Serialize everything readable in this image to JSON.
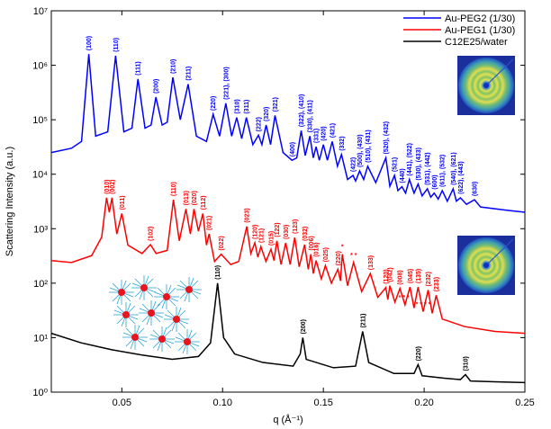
{
  "chart_data": {
    "type": "line",
    "y_label": "Scattering Intensity (a.u.)",
    "x_label": "q (Å⁻¹)",
    "xlim": [
      0.015,
      0.25
    ],
    "xticks": [
      0.05,
      {
        "value": 0.1,
        "label": "0.10"
      },
      0.15,
      {
        "value": 0.2,
        "label": "0.20"
      },
      0.25
    ],
    "ylim": [
      1,
      10000000
    ],
    "log_y": true,
    "yticks": [
      {
        "value": 1,
        "label": "10⁰"
      },
      {
        "value": 10,
        "label": "10¹"
      },
      {
        "value": 100,
        "label": "10²"
      },
      {
        "value": 1000,
        "label": "10³"
      },
      {
        "value": 10000,
        "label": "10⁴"
      },
      {
        "value": 100000,
        "label": "10⁵"
      },
      {
        "value": 1000000,
        "label": "10⁶"
      },
      {
        "value": 10000000,
        "label": "10⁷"
      }
    ],
    "legend": "upper right",
    "series": [
      {
        "name": "Au-PEG2 (1/30)",
        "color": "#0000ff",
        "x": [
          0.015,
          0.025,
          0.03,
          0.0336,
          0.037,
          0.043,
          0.0469,
          0.051,
          0.055,
          0.058,
          0.0615,
          0.0645,
          0.0669,
          0.07,
          0.0725,
          0.0753,
          0.079,
          0.0829,
          0.087,
          0.092,
          0.0953,
          0.0985,
          0.1016,
          0.1045,
          0.107,
          0.1095,
          0.1118,
          0.115,
          0.1178,
          0.1195,
          0.1216,
          0.1238,
          0.126,
          0.13,
          0.1344,
          0.1368,
          0.139,
          0.141,
          0.1433,
          0.145,
          0.1464,
          0.148,
          0.15,
          0.152,
          0.1544,
          0.157,
          0.159,
          0.162,
          0.1647,
          0.166,
          0.168,
          0.17,
          0.172,
          0.176,
          0.181,
          0.183,
          0.1853,
          0.187,
          0.189,
          0.1908,
          0.1927,
          0.195,
          0.197,
          0.199,
          0.2016,
          0.2033,
          0.205,
          0.207,
          0.209,
          0.2115,
          0.2144,
          0.216,
          0.218,
          0.221,
          0.225,
          0.228,
          0.24,
          0.25
        ],
        "values": [
          25000,
          30000,
          40000,
          1600000,
          50000,
          60000,
          1500000,
          60000,
          70000,
          560000,
          70000,
          80000,
          260000,
          80000,
          90000,
          600000,
          100000,
          450000,
          50000,
          40000,
          126000,
          50000,
          200000,
          50000,
          110000,
          45000,
          110000,
          35000,
          52000,
          35000,
          80000,
          35000,
          120000,
          25000,
          18000,
          20000,
          63000,
          22000,
          50000,
          20000,
          32000,
          18000,
          35000,
          18000,
          40000,
          14000,
          23000,
          8000,
          9500,
          7500,
          11500,
          8000,
          14000,
          7000,
          20000,
          6000,
          9500,
          5000,
          5900,
          4500,
          8000,
          4500,
          6600,
          4000,
          5400,
          3800,
          4500,
          3500,
          5000,
          3200,
          5400,
          3200,
          3700,
          2800,
          3400,
          2500,
          2200,
          2000
        ],
        "peak_labels": [
          {
            "text": "(100)",
            "x": 0.0336
          },
          {
            "text": "(110)",
            "x": 0.0469
          },
          {
            "text": "(111)",
            "x": 0.058
          },
          {
            "text": "(200)",
            "x": 0.0669
          },
          {
            "text": "(210)",
            "x": 0.0753
          },
          {
            "text": "(211)",
            "x": 0.0829
          },
          {
            "text": "(220)",
            "x": 0.0953
          },
          {
            "text": "(221), (300)",
            "x": 0.1016
          },
          {
            "text": "(310)",
            "x": 0.107
          },
          {
            "text": "(311)",
            "x": 0.1118
          },
          {
            "text": "(222)",
            "x": 0.1178
          },
          {
            "text": "(320)",
            "x": 0.1216
          },
          {
            "text": "(321)",
            "x": 0.126
          },
          {
            "text": "(400)",
            "x": 0.1344
          },
          {
            "text": "(322), (410)",
            "x": 0.139
          },
          {
            "text": "(330), (411)",
            "x": 0.1433
          },
          {
            "text": "(331)",
            "x": 0.1464
          },
          {
            "text": "(420)",
            "x": 0.15
          },
          {
            "text": "(421)",
            "x": 0.1544
          },
          {
            "text": "(332)",
            "x": 0.159
          },
          {
            "text": "(422)",
            "x": 0.1647
          },
          {
            "text": "(500), (430)",
            "x": 0.168
          },
          {
            "text": "(510), (431)",
            "x": 0.172
          },
          {
            "text": "(520), (432)",
            "x": 0.181
          },
          {
            "text": "(521)",
            "x": 0.1853
          },
          {
            "text": "(440)",
            "x": 0.189
          },
          {
            "text": "(441), (522)",
            "x": 0.1927
          },
          {
            "text": "(530), (433)",
            "x": 0.197
          },
          {
            "text": "(531), (442)",
            "x": 0.2016
          },
          {
            "text": "(600)",
            "x": 0.205
          },
          {
            "text": "(611), (532)",
            "x": 0.209
          },
          {
            "text": "(540), (621)",
            "x": 0.2144
          },
          {
            "text": "(622), (443)",
            "x": 0.218
          },
          {
            "text": "(630)",
            "x": 0.225
          }
        ]
      },
      {
        "name": "Au-PEG1 (1/30)",
        "color": "#ff0000",
        "x": [
          0.015,
          0.025,
          0.035,
          0.04,
          0.0424,
          0.0438,
          0.0451,
          0.0475,
          0.05,
          0.053,
          0.06,
          0.0642,
          0.067,
          0.0725,
          0.0756,
          0.0785,
          0.0818,
          0.084,
          0.0858,
          0.088,
          0.0902,
          0.092,
          0.0933,
          0.096,
          0.0993,
          0.104,
          0.108,
          0.112,
          0.114,
          0.116,
          0.1175,
          0.119,
          0.1215,
          0.124,
          0.1255,
          0.1269,
          0.129,
          0.1313,
          0.1335,
          0.1358,
          0.138,
          0.1407,
          0.1425,
          0.1438,
          0.145,
          0.1464,
          0.149,
          0.151,
          0.154,
          0.1572,
          0.1585,
          0.1594,
          0.162,
          0.165,
          0.169,
          0.1733,
          0.177,
          0.181,
          0.182,
          0.183,
          0.1855,
          0.188,
          0.1905,
          0.193,
          0.195,
          0.197,
          0.1995,
          0.202,
          0.204,
          0.206,
          0.209,
          0.22,
          0.235,
          0.25
        ],
        "values": [
          260,
          240,
          320,
          700,
          3700,
          2000,
          3700,
          800,
          1900,
          500,
          350,
          510,
          350,
          400,
          3400,
          600,
          2300,
          800,
          2300,
          900,
          1900,
          500,
          800,
          250,
          340,
          220,
          250,
          1100,
          350,
          550,
          300,
          470,
          250,
          420,
          260,
          600,
          220,
          550,
          220,
          690,
          200,
          510,
          180,
          340,
          150,
          260,
          120,
          210,
          100,
          180,
          110,
          340,
          90,
          240,
          70,
          150,
          55,
          83,
          50,
          90,
          45,
          80,
          40,
          85,
          35,
          85,
          30,
          75,
          28,
          60,
          22,
          16,
          13,
          12
        ],
        "peak_labels": [
          {
            "text": "(010)",
            "x": 0.0424
          },
          {
            "text": "(002)",
            "x": 0.0451
          },
          {
            "text": "(011)",
            "x": 0.05
          },
          {
            "text": "(102)",
            "x": 0.0642
          },
          {
            "text": "(110)",
            "x": 0.0756
          },
          {
            "text": "(013)",
            "x": 0.0818
          },
          {
            "text": "(020)",
            "x": 0.0858
          },
          {
            "text": "(112)",
            "x": 0.0902
          },
          {
            "text": "(021)",
            "x": 0.0933
          },
          {
            "text": "(022)",
            "x": 0.0993
          },
          {
            "text": "(023)",
            "x": 0.112
          },
          {
            "text": "(120)",
            "x": 0.116
          },
          {
            "text": "(121)",
            "x": 0.119
          },
          {
            "text": "(015)",
            "x": 0.124
          },
          {
            "text": "(122)",
            "x": 0.1269
          },
          {
            "text": "(030)",
            "x": 0.1313
          },
          {
            "text": "(123)",
            "x": 0.1358
          },
          {
            "text": "(032)",
            "x": 0.1407
          },
          {
            "text": "(006)",
            "x": 0.1438
          },
          {
            "text": "(016)",
            "x": 0.1464
          },
          {
            "text": "(025)",
            "x": 0.151
          },
          {
            "text": "(220)",
            "x": 0.1572
          },
          {
            "text": "*",
            "x": 0.1594,
            "rotate": false
          },
          {
            "text": "* *",
            "x": 0.165,
            "rotate": false
          },
          {
            "text": "(133)",
            "x": 0.1733
          },
          {
            "text": "(120)",
            "x": 0.181
          },
          {
            "text": "(042)",
            "x": 0.183
          },
          {
            "text": "(008)",
            "x": 0.188
          },
          {
            "text": "* * *",
            "x": 0.19,
            "rotate": false
          },
          {
            "text": "(045)",
            "x": 0.193
          },
          {
            "text": "(135)",
            "x": 0.197
          },
          {
            "text": "* * * *",
            "x": 0.1995,
            "rotate": false
          },
          {
            "text": "(232)",
            "x": 0.202
          },
          {
            "text": "(233)",
            "x": 0.206
          }
        ]
      },
      {
        "name": "C12E25/water",
        "color": "#000000",
        "x": [
          0.015,
          0.03,
          0.045,
          0.06,
          0.075,
          0.088,
          0.094,
          0.0975,
          0.1005,
          0.106,
          0.12,
          0.135,
          0.1385,
          0.1398,
          0.1415,
          0.155,
          0.166,
          0.1695,
          0.1725,
          0.185,
          0.195,
          0.197,
          0.199,
          0.21,
          0.218,
          0.2205,
          0.223,
          0.235,
          0.25
        ],
        "values": [
          12,
          8,
          6,
          4.8,
          4,
          4.5,
          8,
          100,
          10,
          5,
          3.5,
          3,
          5,
          10,
          4,
          2.8,
          3,
          13,
          3.5,
          2.2,
          2.2,
          3.2,
          2,
          1.8,
          1.7,
          2.1,
          1.6,
          1.55,
          1.5
        ],
        "peak_labels": [
          {
            "text": "(110)",
            "x": 0.0975
          },
          {
            "text": "(200)",
            "x": 0.1398
          },
          {
            "text": "(211)",
            "x": 0.1695
          },
          {
            "text": "(220)",
            "x": 0.197
          },
          {
            "text": "(310)",
            "x": 0.2205
          }
        ]
      }
    ]
  }
}
